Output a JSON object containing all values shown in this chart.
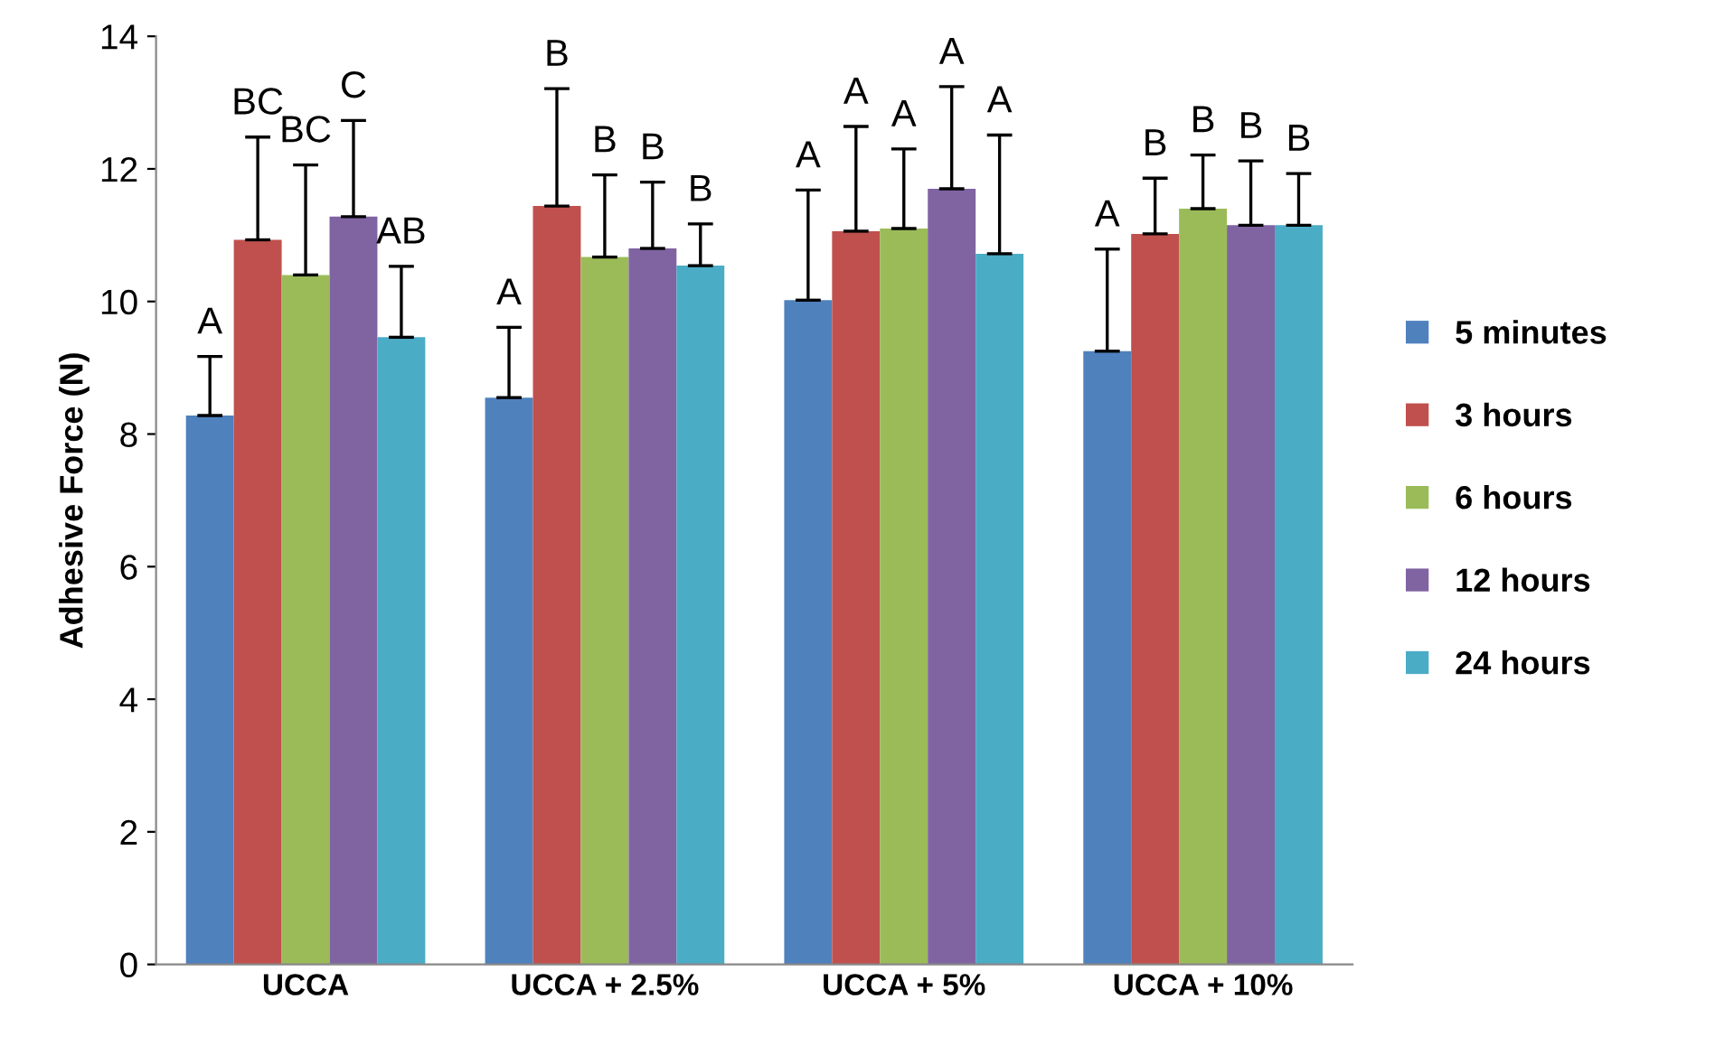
{
  "chart_data": {
    "type": "bar",
    "ylabel": "Adhesive Force (N)",
    "categories": [
      "UCCA",
      "UCCA + 2.5%",
      "UCCA + 5%",
      "UCCA + 10%"
    ],
    "series": [
      {
        "name": "5 minutes",
        "color": "#4f81bd",
        "values": [
          8.28,
          8.55,
          10.02,
          9.25
        ],
        "errors": [
          [
            8.28,
            9.17
          ],
          [
            8.55,
            9.61
          ],
          [
            10.02,
            11.68
          ],
          [
            9.25,
            10.79
          ]
        ]
      },
      {
        "name": "3 hours",
        "color": "#c0504d",
        "values": [
          10.93,
          11.44,
          11.06,
          11.02
        ],
        "errors": [
          [
            10.93,
            12.48
          ],
          [
            11.44,
            13.21
          ],
          [
            11.06,
            12.64
          ],
          [
            11.02,
            11.86
          ]
        ]
      },
      {
        "name": "6 hours",
        "color": "#9bbb59",
        "values": [
          10.4,
          10.67,
          11.1,
          11.4
        ],
        "errors": [
          [
            10.4,
            12.06
          ],
          [
            10.67,
            11.91
          ],
          [
            11.1,
            12.3
          ],
          [
            11.4,
            12.21
          ]
        ]
      },
      {
        "name": "12 hours",
        "color": "#8064a2",
        "values": [
          11.28,
          10.8,
          11.7,
          11.15
        ],
        "errors": [
          [
            11.28,
            12.73
          ],
          [
            10.8,
            11.8
          ],
          [
            11.7,
            13.24
          ],
          [
            11.15,
            12.12
          ]
        ]
      },
      {
        "name": "24 hours",
        "color": "#4bacc6",
        "values": [
          9.46,
          10.54,
          10.72,
          11.15
        ],
        "errors": [
          [
            9.46,
            10.53
          ],
          [
            10.54,
            11.17
          ],
          [
            10.72,
            12.51
          ],
          [
            11.15,
            11.93
          ]
        ]
      }
    ],
    "annotations": [
      "A",
      "BC",
      "BC",
      "C",
      "AB",
      "A",
      "B",
      "B",
      "B",
      "B",
      "A",
      "A",
      "A",
      "A",
      "A",
      "A",
      "B",
      "B",
      "B",
      "B"
    ],
    "ylim": [
      0,
      14
    ],
    "yticks": [
      0,
      2,
      4,
      6,
      8,
      10,
      12,
      14
    ],
    "grid": false,
    "legend": "right"
  }
}
